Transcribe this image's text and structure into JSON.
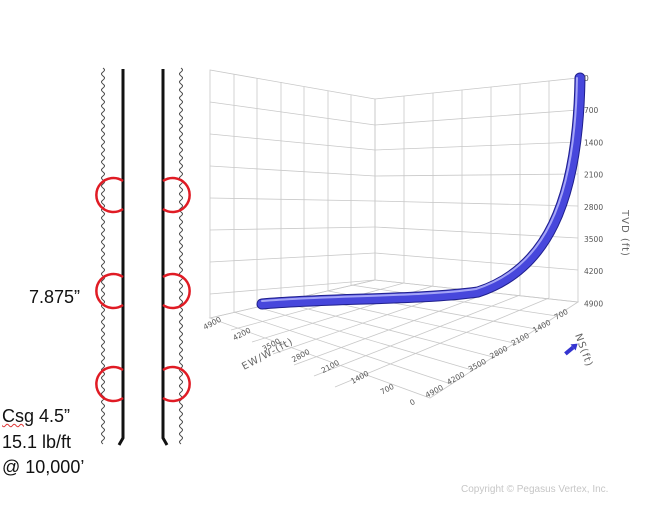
{
  "labels": {
    "hole_size": "7.875”",
    "casing_word": "Csg",
    "casing_size": "4.5”",
    "weight": "15.1 lb/ft",
    "depth": "@ 10,000’"
  },
  "copyright": "Copyright © Pegasus Vertex, Inc.",
  "axes": {
    "tvd_title": "TVD (ft)",
    "tvd_ticks": [
      "0",
      "700",
      "1400",
      "2100",
      "2800",
      "3500",
      "4200",
      "4900"
    ],
    "ew_title": "EW/W-(ft)",
    "ew_ticks": [
      "4900",
      "4200",
      "3500",
      "2800",
      "2100",
      "1400",
      "700",
      "0"
    ],
    "ns_title": "NS(ft)",
    "ns_ticks": [
      "700",
      "1400",
      "2100",
      "2800",
      "3500",
      "4200",
      "4900"
    ]
  },
  "colors": {
    "pipe": "#111111",
    "contact_ring": "#e01b24",
    "trajectory": "#4747dc",
    "grid": "#c8c8c8"
  }
}
